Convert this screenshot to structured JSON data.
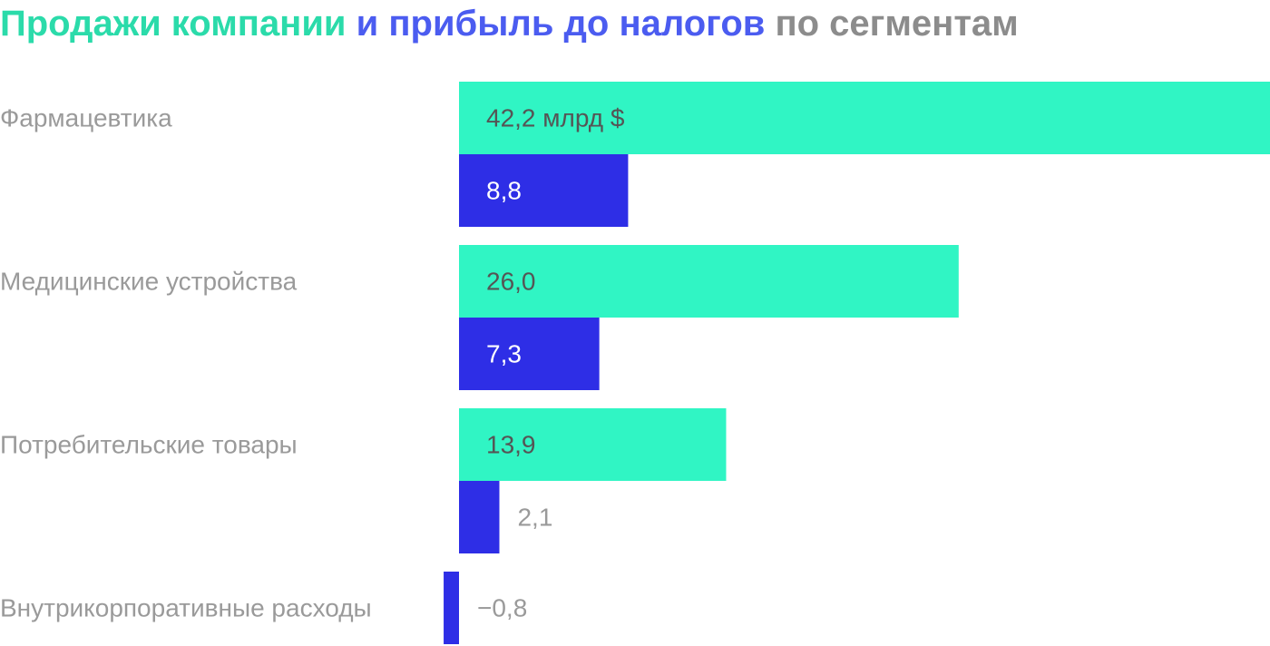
{
  "title": {
    "part_sales": "Продажи компании",
    "part_profit": "и прибыль до налогов",
    "part_rest": "по сегментам"
  },
  "colors": {
    "sales_bar": "#30f5c4",
    "profit_bar": "#2e2ee6",
    "title_sales": "#2bdbaa",
    "title_profit": "#4b5cf0",
    "title_rest": "#8c8c8c",
    "category_text": "#9a9a9a",
    "label_on_sales": "#555555",
    "label_on_profit": "#ffffff",
    "label_outside": "#9a9a9a"
  },
  "chart_data": {
    "type": "bar",
    "orientation": "horizontal",
    "unit": "млрд $",
    "categories": [
      "Фармацевтика",
      "Медицинские устройства",
      "Потребительские товары",
      "Внутрикорпоративные расходы"
    ],
    "series": [
      {
        "key": "sales",
        "values": [
          42.2,
          26.0,
          13.9,
          null
        ],
        "labels": [
          "42,2 млрд $",
          "26,0",
          "13,9",
          ""
        ]
      },
      {
        "key": "profit",
        "values": [
          8.8,
          7.3,
          2.1,
          -0.8
        ],
        "labels": [
          "8,8",
          "7,3",
          "2,1",
          "−0,8"
        ]
      }
    ],
    "xlim": [
      -0.8,
      42.2
    ],
    "grid": false,
    "legend": "none"
  }
}
